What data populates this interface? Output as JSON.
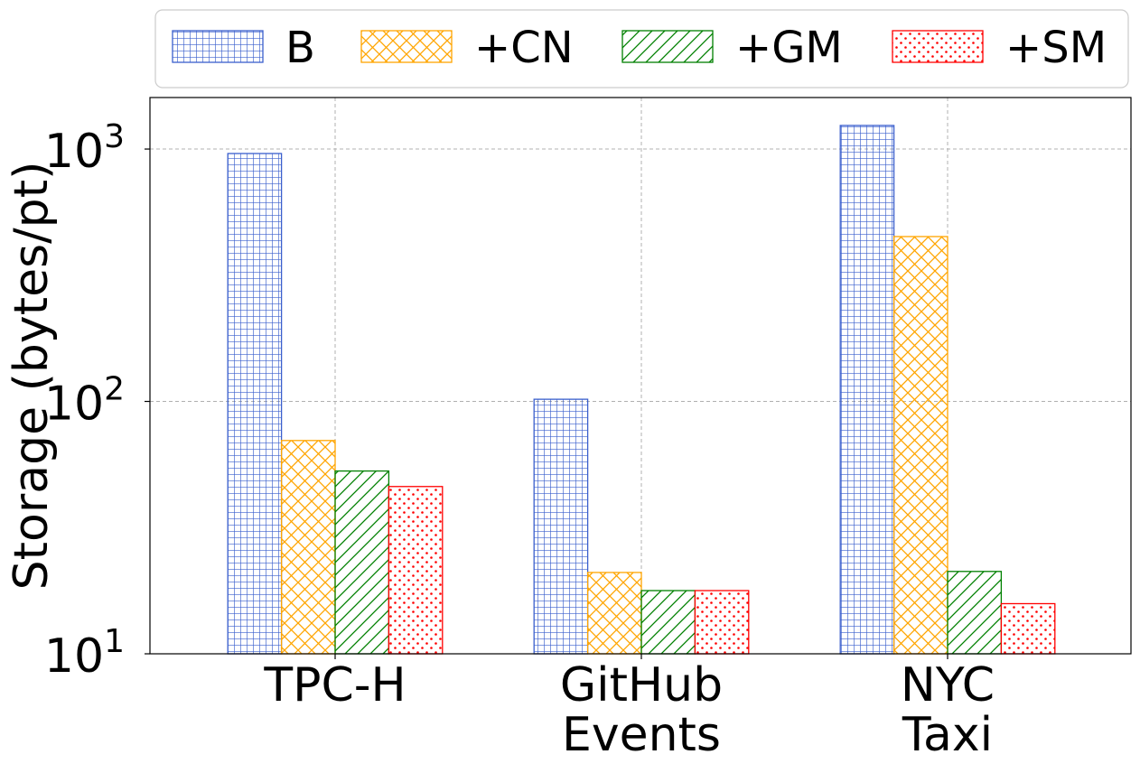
{
  "chart_data": {
    "type": "bar",
    "title": "",
    "xlabel": "",
    "ylabel": "Storage (bytes/pt)",
    "yscale": "log",
    "ylim": [
      10,
      1600
    ],
    "yticks": [
      {
        "value": 10,
        "base": "10",
        "exp": "1"
      },
      {
        "value": 100,
        "base": "10",
        "exp": "2"
      },
      {
        "value": 1000,
        "base": "10",
        "exp": "3"
      }
    ],
    "categories": [
      {
        "lines": [
          "TPC-H"
        ]
      },
      {
        "lines": [
          "GitHub",
          "Events"
        ]
      },
      {
        "lines": [
          "NYC",
          "Taxi"
        ]
      }
    ],
    "series": [
      {
        "name": "B",
        "color": "#3a5fcd",
        "pattern": "grid",
        "values": [
          960,
          102,
          1240
        ]
      },
      {
        "name": "+CN",
        "color": "#ffa500",
        "pattern": "crosshatch",
        "values": [
          70,
          21,
          450
        ]
      },
      {
        "name": "+GM",
        "color": "#008000",
        "pattern": "diagonal",
        "values": [
          53,
          17.8,
          21.2
        ]
      },
      {
        "name": "+SM",
        "color": "#ff0000",
        "pattern": "dots",
        "values": [
          46,
          17.8,
          15.8
        ]
      }
    ],
    "grid": true,
    "legend_position": "top"
  }
}
